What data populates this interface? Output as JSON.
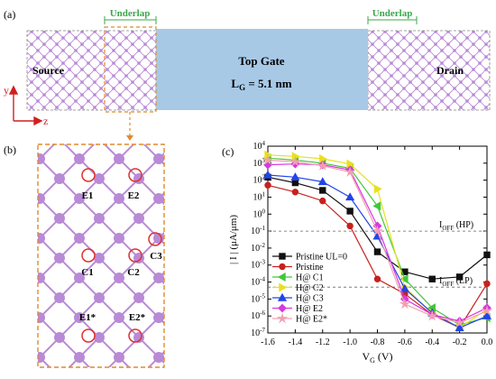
{
  "panel_a": {
    "label": "(a)",
    "underlap_left": "Underlap",
    "underlap_right": "Underlap",
    "source": "Source",
    "drain": "Drain",
    "top_gate": "Top Gate",
    "lg_text": "L",
    "lg_sub": "G",
    "lg_value": " = 5.1 nm",
    "axis_y": "y",
    "axis_z": "z"
  },
  "panel_b": {
    "label": "(b)",
    "sites": [
      "E1",
      "E2",
      "C1",
      "C2",
      "C3",
      "E1*",
      "E2*"
    ]
  },
  "panel_c": {
    "label": "(c)",
    "ioff_hp_main": "I",
    "ioff_hp_sub": "OFF",
    "ioff_hp_suffix": " (HP)",
    "ioff_lp_main": "I",
    "ioff_lp_sub": "OFF",
    "ioff_lp_suffix": " (LP)"
  },
  "colors": {
    "gate": "#a7c9e6",
    "atom": "#b98ad6",
    "bond": "#b98ad6",
    "bracket": "#e08a2c",
    "underlap_text": "#3aa84a",
    "site_circle": "#e03030"
  },
  "chart_data": {
    "type": "line",
    "xlabel_main": "V",
    "xlabel_sub": "G",
    "xlabel_suffix": " (V)",
    "ylabel": "| I | (μA/μm)",
    "xlim": [
      -1.6,
      0.0
    ],
    "ylim_log10": [
      -7,
      4
    ],
    "xticks": [
      "-1.6",
      "-1.4",
      "-1.2",
      "-1.0",
      "-0.8",
      "-0.6",
      "-0.4",
      "-0.2",
      "0.0"
    ],
    "yticks": [
      "10^4",
      "10^3",
      "10^2",
      "10^1",
      "10^0",
      "10^-1",
      "10^-2",
      "10^-3",
      "10^-4",
      "10^-5",
      "10^-6",
      "10^-7"
    ],
    "reference_lines": [
      {
        "name": "IOFF (HP)",
        "value": 0.1
      },
      {
        "name": "IOFF (LP)",
        "value": 5e-05
      }
    ],
    "x": [
      -1.6,
      -1.4,
      -1.2,
      -1.0,
      -0.8,
      -0.6,
      -0.4,
      -0.2,
      0.0
    ],
    "series": [
      {
        "name": "Pristine UL=0",
        "color": "#111111",
        "marker": "square",
        "values": [
          150,
          70,
          25,
          1.5,
          0.006,
          0.0004,
          0.00015,
          0.0002,
          0.004
        ]
      },
      {
        "name": "Pristine",
        "color": "#c8201e",
        "marker": "circle",
        "values": [
          50,
          20,
          6,
          0.2,
          0.00015,
          2e-05,
          1.2e-06,
          2e-07,
          8e-05
        ]
      },
      {
        "name": "H@ C1",
        "color": "#40c838",
        "marker": "triangle-left",
        "values": [
          2000,
          1500,
          1000,
          500,
          3,
          0.00015,
          3e-06,
          3e-07,
          8e-07
        ]
      },
      {
        "name": "H@ C2",
        "color": "#e8e020",
        "marker": "triangle-right",
        "values": [
          3000,
          2500,
          1800,
          900,
          30,
          5e-05,
          1.5e-06,
          2e-07,
          2.5e-06
        ]
      },
      {
        "name": "H@ C3",
        "color": "#2244e8",
        "marker": "triangle-up",
        "values": [
          200,
          150,
          80,
          10,
          0.05,
          4e-05,
          1.5e-06,
          2e-07,
          1e-06
        ]
      },
      {
        "name": "H@ E2",
        "color": "#d838e0",
        "marker": "diamond",
        "values": [
          800,
          900,
          800,
          400,
          0.2,
          1e-05,
          1.2e-06,
          5e-07,
          3e-06
        ]
      },
      {
        "name": "H@ E2*",
        "color": "#f0a0b0",
        "marker": "star",
        "values": [
          1500,
          1200,
          700,
          300,
          0.1,
          5e-06,
          1e-06,
          4e-07,
          2e-06
        ]
      }
    ]
  }
}
